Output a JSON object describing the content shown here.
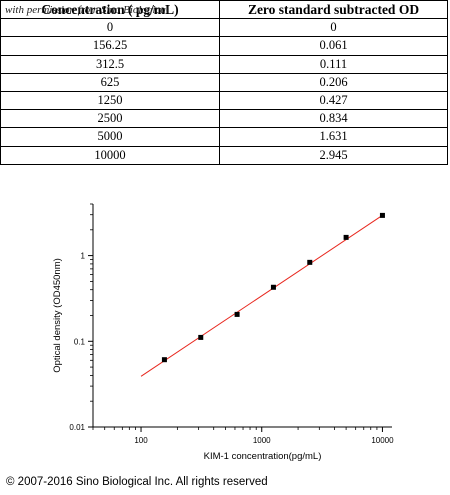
{
  "table": {
    "watermark": "with permission from Sino Biological",
    "headers": [
      "Concentration ( pg/mL)",
      "Zero standard subtracted OD"
    ],
    "rows": [
      [
        "0",
        "0"
      ],
      [
        "156.25",
        "0.061"
      ],
      [
        "312.5",
        "0.111"
      ],
      [
        "625",
        "0.206"
      ],
      [
        "1250",
        "0.427"
      ],
      [
        "2500",
        "0.834"
      ],
      [
        "5000",
        "1.631"
      ],
      [
        "10000",
        "2.945"
      ]
    ]
  },
  "chart_data": {
    "type": "scatter",
    "xlabel": "KIM-1 concentration(pg/mL)",
    "ylabel": "Optical density (OD450nm)",
    "xscale": "log",
    "yscale": "log",
    "xlim": [
      40,
      12000
    ],
    "ylim": [
      0.01,
      4
    ],
    "xticks": [
      100,
      1000,
      10000
    ],
    "xtick_labels": [
      "100",
      "1000",
      "10000"
    ],
    "yticks": [
      0.01,
      0.1,
      1
    ],
    "ytick_labels": [
      "0.01",
      "0.1",
      "1"
    ],
    "points": {
      "x": [
        156.25,
        312.5,
        625,
        1250,
        2500,
        5000,
        10000
      ],
      "y": [
        0.061,
        0.111,
        0.206,
        0.427,
        0.834,
        1.631,
        2.945
      ],
      "color": "#000000"
    },
    "fit_line": {
      "x": [
        100,
        10000
      ],
      "y": [
        0.039,
        2.95
      ],
      "color": "#e8271e"
    },
    "grid": false
  },
  "footer": {
    "copyright": "© 2007-2016 Sino Biological Inc. All rights reserved"
  }
}
